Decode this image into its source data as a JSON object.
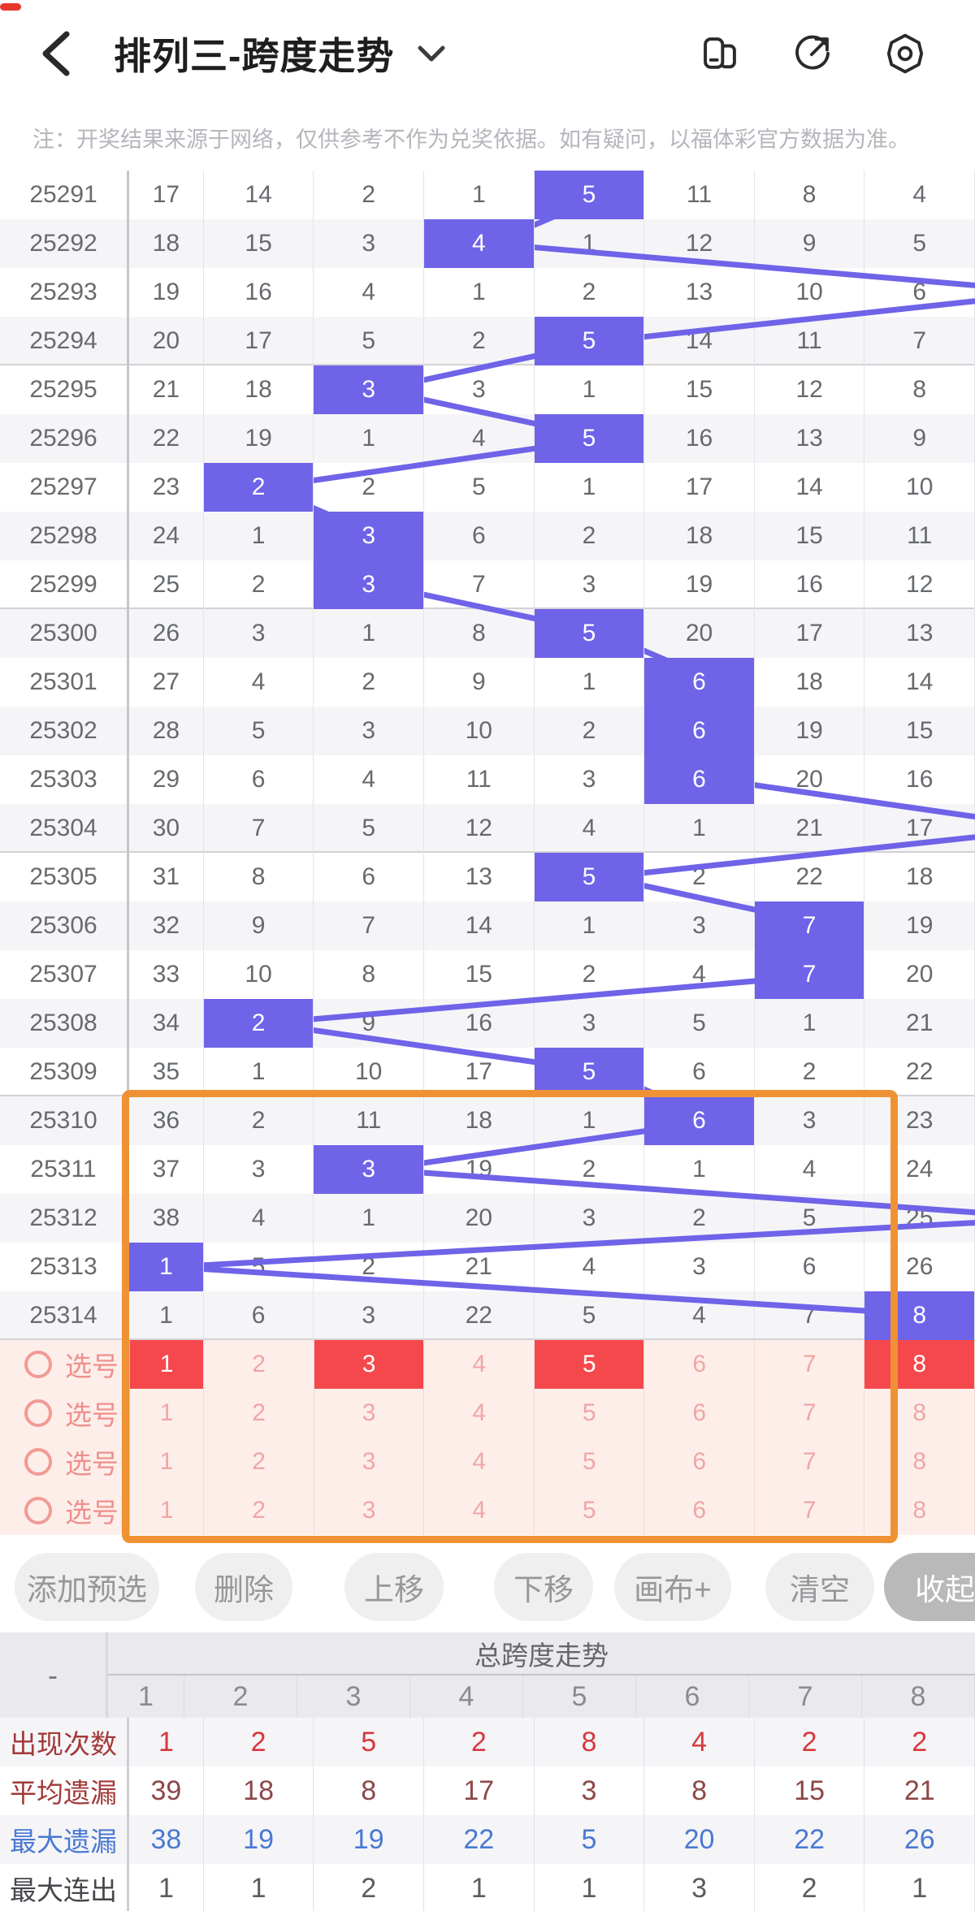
{
  "header": {
    "title": "排列三-跨度走势",
    "icons": [
      "back-icon",
      "dropdown-chevron",
      "switch-window-icon",
      "share-icon",
      "settings-icon"
    ]
  },
  "notice": "注：开奖结果来源于网络，仅供参考不作为兑奖依据。如有疑问，以福体彩官方数据为准。",
  "trend_table": {
    "highlight_color": "#6f63e8",
    "rows": [
      {
        "period": "25291",
        "values": [
          17,
          14,
          2,
          1,
          5,
          11,
          8,
          4
        ],
        "hl": 5
      },
      {
        "period": "25292",
        "values": [
          18,
          15,
          3,
          4,
          1,
          12,
          9,
          5
        ],
        "hl": 4
      },
      {
        "period": "25293",
        "values": [
          19,
          16,
          4,
          1,
          2,
          13,
          10,
          6
        ],
        "hl": 9
      },
      {
        "period": "25294",
        "values": [
          20,
          17,
          5,
          2,
          5,
          14,
          11,
          7
        ],
        "hl": 5
      },
      {
        "period": "25295",
        "values": [
          21,
          18,
          3,
          3,
          1,
          15,
          12,
          8
        ],
        "hl": 3
      },
      {
        "period": "25296",
        "values": [
          22,
          19,
          1,
          4,
          5,
          16,
          13,
          9
        ],
        "hl": 5
      },
      {
        "period": "25297",
        "values": [
          23,
          2,
          2,
          5,
          1,
          17,
          14,
          10
        ],
        "hl": 2
      },
      {
        "period": "25298",
        "values": [
          24,
          1,
          3,
          6,
          2,
          18,
          15,
          11
        ],
        "hl": 3
      },
      {
        "period": "25299",
        "values": [
          25,
          2,
          3,
          7,
          3,
          19,
          16,
          12
        ],
        "hl": 3
      },
      {
        "period": "25300",
        "values": [
          26,
          3,
          1,
          8,
          5,
          20,
          17,
          13
        ],
        "hl": 5
      },
      {
        "period": "25301",
        "values": [
          27,
          4,
          2,
          9,
          1,
          6,
          18,
          14
        ],
        "hl": 6
      },
      {
        "period": "25302",
        "values": [
          28,
          5,
          3,
          10,
          2,
          6,
          19,
          15
        ],
        "hl": 6
      },
      {
        "period": "25303",
        "values": [
          29,
          6,
          4,
          11,
          3,
          6,
          20,
          16
        ],
        "hl": 6
      },
      {
        "period": "25304",
        "values": [
          30,
          7,
          5,
          12,
          4,
          1,
          21,
          17
        ],
        "hl": 9
      },
      {
        "period": "25305",
        "values": [
          31,
          8,
          6,
          13,
          5,
          2,
          22,
          18
        ],
        "hl": 5
      },
      {
        "period": "25306",
        "values": [
          32,
          9,
          7,
          14,
          1,
          3,
          7,
          19
        ],
        "hl": 7
      },
      {
        "period": "25307",
        "values": [
          33,
          10,
          8,
          15,
          2,
          4,
          7,
          20
        ],
        "hl": 7
      },
      {
        "period": "25308",
        "values": [
          34,
          2,
          9,
          16,
          3,
          5,
          1,
          21
        ],
        "hl": 2
      },
      {
        "period": "25309",
        "values": [
          35,
          1,
          10,
          17,
          5,
          6,
          2,
          22
        ],
        "hl": 5
      },
      {
        "period": "25310",
        "values": [
          36,
          2,
          11,
          18,
          1,
          6,
          3,
          23
        ],
        "hl": 6
      },
      {
        "period": "25311",
        "values": [
          37,
          3,
          3,
          19,
          2,
          1,
          4,
          24
        ],
        "hl": 3
      },
      {
        "period": "25312",
        "values": [
          38,
          4,
          1,
          20,
          3,
          2,
          5,
          25
        ],
        "hl": 9
      },
      {
        "period": "25313",
        "values": [
          1,
          5,
          2,
          21,
          4,
          3,
          6,
          26
        ],
        "hl": 1
      },
      {
        "period": "25314",
        "values": [
          1,
          6,
          3,
          22,
          5,
          4,
          7,
          8
        ],
        "hl": 8
      }
    ]
  },
  "select_rows": [
    {
      "label": "选号",
      "values": [
        1,
        2,
        3,
        4,
        5,
        6,
        7,
        8
      ],
      "selected": [
        1,
        3,
        5,
        8
      ]
    },
    {
      "label": "选号",
      "values": [
        1,
        2,
        3,
        4,
        5,
        6,
        7,
        8
      ],
      "selected": []
    },
    {
      "label": "选号",
      "values": [
        1,
        2,
        3,
        4,
        5,
        6,
        7,
        8
      ],
      "selected": []
    },
    {
      "label": "选号",
      "values": [
        1,
        2,
        3,
        4,
        5,
        6,
        7,
        8
      ],
      "selected": []
    }
  ],
  "toolbar": {
    "buttons": [
      "添加预选",
      "删除",
      "上移",
      "下移",
      "画布+",
      "清空"
    ],
    "collapse_label": "收起"
  },
  "stats": {
    "corner": "-",
    "title": "总跨度走势",
    "columns": [
      "1",
      "2",
      "3",
      "4",
      "5",
      "6",
      "7",
      "8"
    ],
    "rows": [
      {
        "label": "出现次数",
        "values": [
          1,
          2,
          5,
          2,
          8,
          4,
          2,
          2
        ],
        "style": "red"
      },
      {
        "label": "平均遗漏",
        "values": [
          39,
          18,
          8,
          17,
          3,
          8,
          15,
          21
        ],
        "style": "maroon"
      },
      {
        "label": "最大遗漏",
        "values": [
          38,
          19,
          19,
          22,
          5,
          20,
          22,
          26
        ],
        "style": "blue"
      },
      {
        "label": "最大连出",
        "values": [
          1,
          1,
          2,
          1,
          1,
          3,
          2,
          1
        ],
        "style": "dark"
      }
    ]
  },
  "colors": {
    "highlight_purple": "#6f63e8",
    "select_red": "#f5484d",
    "select_bg_pink": "#fdeeea",
    "orange_box": "#ef9234"
  }
}
